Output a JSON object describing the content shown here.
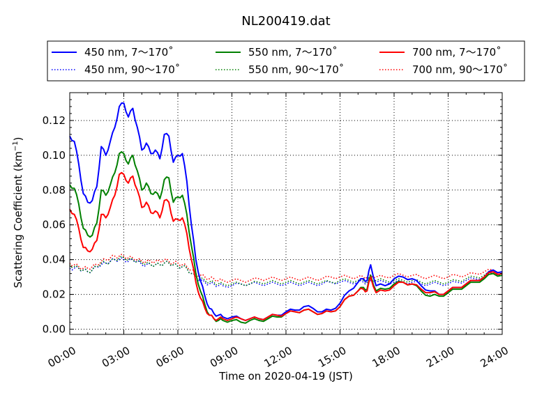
{
  "chart_data": {
    "type": "line",
    "title": "NL200419.dat",
    "xlabel": "Time on 2020-04-19 (JST)",
    "ylabel_main": "Scattering Coefficient (km",
    "ylabel_sup": "−1",
    "ylabel_end": ")",
    "xlim": [
      0,
      24
    ],
    "ylim": [
      -0.003,
      0.136
    ],
    "x_ticks": [
      0,
      3,
      6,
      9,
      12,
      15,
      18,
      21,
      24
    ],
    "x_tick_labels": [
      "00:00",
      "03:00",
      "06:00",
      "09:00",
      "12:00",
      "15:00",
      "18:00",
      "21:00",
      "24:00"
    ],
    "y_ticks": [
      0.0,
      0.02,
      0.04,
      0.06,
      0.08,
      0.1,
      0.12
    ],
    "y_tick_labels": [
      "0.00",
      "0.02",
      "0.04",
      "0.06",
      "0.08",
      "0.10",
      "0.12"
    ],
    "grid": true,
    "legend_position": "top (above plot)",
    "x": [
      0,
      0.25,
      0.5,
      0.75,
      1,
      1.25,
      1.5,
      1.75,
      2,
      2.25,
      2.5,
      2.75,
      3,
      3.25,
      3.5,
      3.75,
      4,
      4.25,
      4.5,
      4.75,
      5,
      5.25,
      5.5,
      5.75,
      6,
      6.25,
      6.5,
      6.75,
      7,
      7.25,
      7.5,
      7.75,
      8,
      8.25,
      8.5,
      9,
      9.5,
      10,
      10.5,
      11,
      11.5,
      12,
      12.5,
      13,
      13.5,
      14,
      14.5,
      15,
      15.5,
      16,
      16.3,
      16.5,
      16.7,
      17,
      17.5,
      18,
      18.5,
      19,
      19.5,
      20,
      20.5,
      21,
      21.5,
      22,
      22.5,
      23,
      23.5,
      24
    ],
    "series": [
      {
        "name": "450 nm, 7～170˚",
        "color": "#0000ff",
        "dash": "solid",
        "values": [
          0.111,
          0.108,
          0.095,
          0.078,
          0.073,
          0.074,
          0.082,
          0.105,
          0.1,
          0.108,
          0.116,
          0.128,
          0.13,
          0.122,
          0.127,
          0.116,
          0.103,
          0.107,
          0.101,
          0.103,
          0.098,
          0.112,
          0.111,
          0.096,
          0.1,
          0.101,
          0.085,
          0.06,
          0.04,
          0.028,
          0.019,
          0.012,
          0.009,
          0.008,
          0.007,
          0.007,
          0.006,
          0.006,
          0.006,
          0.007,
          0.008,
          0.01,
          0.011,
          0.013,
          0.012,
          0.01,
          0.011,
          0.015,
          0.022,
          0.027,
          0.029,
          0.028,
          0.037,
          0.025,
          0.025,
          0.029,
          0.03,
          0.029,
          0.025,
          0.022,
          0.02,
          0.022,
          0.024,
          0.026,
          0.028,
          0.03,
          0.034,
          0.033
        ]
      },
      {
        "name": "550 nm, 7～170˚",
        "color": "#008000",
        "dash": "solid",
        "values": [
          0.083,
          0.081,
          0.072,
          0.058,
          0.054,
          0.054,
          0.061,
          0.08,
          0.077,
          0.083,
          0.09,
          0.101,
          0.101,
          0.095,
          0.1,
          0.091,
          0.08,
          0.084,
          0.078,
          0.079,
          0.075,
          0.086,
          0.087,
          0.073,
          0.076,
          0.077,
          0.066,
          0.048,
          0.032,
          0.022,
          0.014,
          0.008,
          0.006,
          0.005,
          0.005,
          0.005,
          0.004,
          0.005,
          0.005,
          0.006,
          0.007,
          0.009,
          0.01,
          0.011,
          0.01,
          0.009,
          0.01,
          0.013,
          0.019,
          0.022,
          0.024,
          0.023,
          0.031,
          0.022,
          0.023,
          0.026,
          0.027,
          0.026,
          0.022,
          0.019,
          0.019,
          0.021,
          0.023,
          0.025,
          0.027,
          0.029,
          0.032,
          0.031
        ]
      },
      {
        "name": "700 nm, 7～170˚",
        "color": "#ff0000",
        "dash": "solid",
        "values": [
          0.069,
          0.066,
          0.058,
          0.047,
          0.045,
          0.046,
          0.051,
          0.066,
          0.064,
          0.07,
          0.077,
          0.089,
          0.089,
          0.084,
          0.088,
          0.08,
          0.07,
          0.073,
          0.067,
          0.068,
          0.064,
          0.074,
          0.073,
          0.062,
          0.063,
          0.064,
          0.055,
          0.04,
          0.027,
          0.018,
          0.012,
          0.008,
          0.006,
          0.006,
          0.006,
          0.006,
          0.006,
          0.006,
          0.006,
          0.007,
          0.008,
          0.009,
          0.01,
          0.011,
          0.01,
          0.009,
          0.01,
          0.013,
          0.019,
          0.022,
          0.023,
          0.022,
          0.03,
          0.021,
          0.022,
          0.025,
          0.027,
          0.026,
          0.023,
          0.021,
          0.02,
          0.022,
          0.024,
          0.026,
          0.028,
          0.03,
          0.033,
          0.032
        ]
      },
      {
        "name": "450 nm, 90～170˚",
        "color": "#0000ff",
        "dash": "dotted",
        "values": [
          0.035,
          0.035,
          0.035,
          0.034,
          0.033,
          0.034,
          0.036,
          0.037,
          0.038,
          0.039,
          0.04,
          0.04,
          0.04,
          0.039,
          0.04,
          0.039,
          0.037,
          0.037,
          0.037,
          0.037,
          0.037,
          0.038,
          0.038,
          0.037,
          0.036,
          0.036,
          0.035,
          0.032,
          0.03,
          0.028,
          0.027,
          0.026,
          0.026,
          0.025,
          0.025,
          0.025,
          0.026,
          0.026,
          0.026,
          0.026,
          0.026,
          0.026,
          0.026,
          0.026,
          0.026,
          0.026,
          0.027,
          0.027,
          0.027,
          0.027,
          0.027,
          0.027,
          0.028,
          0.027,
          0.027,
          0.027,
          0.027,
          0.027,
          0.026,
          0.026,
          0.026,
          0.026,
          0.027,
          0.028,
          0.029,
          0.03,
          0.032,
          0.032
        ]
      },
      {
        "name": "550 nm, 90～170˚",
        "color": "#008000",
        "dash": "dotted",
        "values": [
          0.037,
          0.036,
          0.035,
          0.034,
          0.033,
          0.034,
          0.036,
          0.038,
          0.038,
          0.039,
          0.04,
          0.041,
          0.041,
          0.04,
          0.04,
          0.039,
          0.038,
          0.038,
          0.037,
          0.037,
          0.037,
          0.038,
          0.038,
          0.037,
          0.036,
          0.036,
          0.035,
          0.032,
          0.03,
          0.029,
          0.028,
          0.027,
          0.027,
          0.026,
          0.026,
          0.026,
          0.026,
          0.026,
          0.027,
          0.027,
          0.027,
          0.027,
          0.027,
          0.027,
          0.027,
          0.027,
          0.027,
          0.028,
          0.028,
          0.028,
          0.028,
          0.028,
          0.029,
          0.028,
          0.028,
          0.028,
          0.028,
          0.028,
          0.027,
          0.027,
          0.027,
          0.027,
          0.028,
          0.029,
          0.03,
          0.031,
          0.033,
          0.032
        ]
      },
      {
        "name": "700 nm, 90～170˚",
        "color": "#ff0000",
        "dash": "dotted",
        "values": [
          0.038,
          0.037,
          0.036,
          0.035,
          0.035,
          0.036,
          0.037,
          0.039,
          0.04,
          0.041,
          0.042,
          0.042,
          0.042,
          0.041,
          0.041,
          0.04,
          0.039,
          0.039,
          0.039,
          0.039,
          0.039,
          0.04,
          0.039,
          0.038,
          0.038,
          0.037,
          0.036,
          0.034,
          0.032,
          0.031,
          0.03,
          0.029,
          0.029,
          0.028,
          0.028,
          0.028,
          0.028,
          0.028,
          0.029,
          0.029,
          0.029,
          0.029,
          0.029,
          0.029,
          0.029,
          0.029,
          0.03,
          0.03,
          0.03,
          0.03,
          0.03,
          0.03,
          0.031,
          0.03,
          0.03,
          0.031,
          0.031,
          0.031,
          0.03,
          0.03,
          0.03,
          0.03,
          0.031,
          0.031,
          0.032,
          0.033,
          0.034,
          0.033
        ]
      }
    ]
  },
  "legend": {
    "columns": [
      [
        "450 nm, 7～170˚",
        "450 nm, 90～170˚"
      ],
      [
        "550 nm, 7～170˚",
        "550 nm, 90～170˚"
      ],
      [
        "700 nm, 7～170˚",
        "700 nm, 90～170˚"
      ]
    ]
  }
}
